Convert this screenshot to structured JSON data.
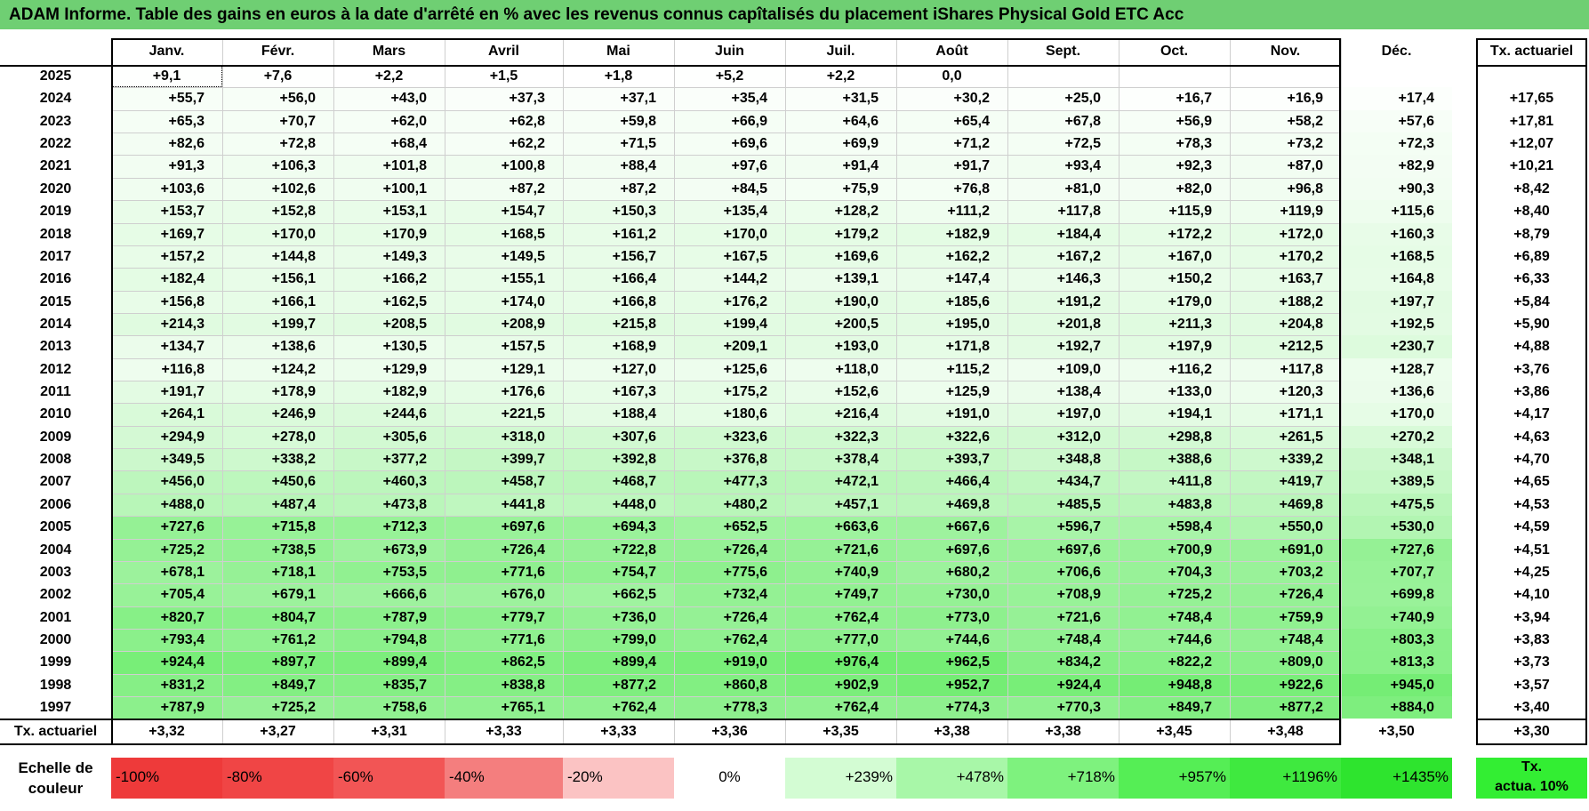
{
  "title": "ADAM Informe. Table des gains en euros à la date d'arrêté en % avec les revenus connus capîtalisés du placement iShares Physical Gold ETC Acc",
  "months": [
    "Janv.",
    "Févr.",
    "Mars",
    "Avril",
    "Mai",
    "Juin",
    "Juil.",
    "Août",
    "Sept.",
    "Oct.",
    "Nov.",
    "Déc."
  ],
  "tx_header": "Tx. actuariel",
  "rows": [
    {
      "year": "2025",
      "values": [
        "+9,1",
        "+7,6",
        "+2,2",
        "+1,5",
        "+1,8",
        "+5,2",
        "+2,2",
        "0,0",
        "",
        "",
        "",
        ""
      ],
      "tx": ""
    },
    {
      "year": "2024",
      "values": [
        "+55,7",
        "+56,0",
        "+43,0",
        "+37,3",
        "+37,1",
        "+35,4",
        "+31,5",
        "+30,2",
        "+25,0",
        "+16,7",
        "+16,9",
        "+17,4"
      ],
      "tx": "+17,65"
    },
    {
      "year": "2023",
      "values": [
        "+65,3",
        "+70,7",
        "+62,0",
        "+62,8",
        "+59,8",
        "+66,9",
        "+64,6",
        "+65,4",
        "+67,8",
        "+56,9",
        "+58,2",
        "+57,6"
      ],
      "tx": "+17,81"
    },
    {
      "year": "2022",
      "values": [
        "+82,6",
        "+72,8",
        "+68,4",
        "+62,2",
        "+71,5",
        "+69,6",
        "+69,9",
        "+71,2",
        "+72,5",
        "+78,3",
        "+73,2",
        "+72,3"
      ],
      "tx": "+12,07"
    },
    {
      "year": "2021",
      "values": [
        "+91,3",
        "+106,3",
        "+101,8",
        "+100,8",
        "+88,4",
        "+97,6",
        "+91,4",
        "+91,7",
        "+93,4",
        "+92,3",
        "+87,0",
        "+82,9"
      ],
      "tx": "+10,21"
    },
    {
      "year": "2020",
      "values": [
        "+103,6",
        "+102,6",
        "+100,1",
        "+87,2",
        "+87,2",
        "+84,5",
        "+75,9",
        "+76,8",
        "+81,0",
        "+82,0",
        "+96,8",
        "+90,3"
      ],
      "tx": "+8,42"
    },
    {
      "year": "2019",
      "values": [
        "+153,7",
        "+152,8",
        "+153,1",
        "+154,7",
        "+150,3",
        "+135,4",
        "+128,2",
        "+111,2",
        "+117,8",
        "+115,9",
        "+119,9",
        "+115,6"
      ],
      "tx": "+8,40"
    },
    {
      "year": "2018",
      "values": [
        "+169,7",
        "+170,0",
        "+170,9",
        "+168,5",
        "+161,2",
        "+170,0",
        "+179,2",
        "+182,9",
        "+184,4",
        "+172,2",
        "+172,0",
        "+160,3"
      ],
      "tx": "+8,79"
    },
    {
      "year": "2017",
      "values": [
        "+157,2",
        "+144,8",
        "+149,3",
        "+149,5",
        "+156,7",
        "+167,5",
        "+169,6",
        "+162,2",
        "+167,2",
        "+167,0",
        "+170,2",
        "+168,5"
      ],
      "tx": "+6,89"
    },
    {
      "year": "2016",
      "values": [
        "+182,4",
        "+156,1",
        "+166,2",
        "+155,1",
        "+166,4",
        "+144,2",
        "+139,1",
        "+147,4",
        "+146,3",
        "+150,2",
        "+163,7",
        "+164,8"
      ],
      "tx": "+6,33"
    },
    {
      "year": "2015",
      "values": [
        "+156,8",
        "+166,1",
        "+162,5",
        "+174,0",
        "+166,8",
        "+176,2",
        "+190,0",
        "+185,6",
        "+191,2",
        "+179,0",
        "+188,2",
        "+197,7"
      ],
      "tx": "+5,84"
    },
    {
      "year": "2014",
      "values": [
        "+214,3",
        "+199,7",
        "+208,5",
        "+208,9",
        "+215,8",
        "+199,4",
        "+200,5",
        "+195,0",
        "+201,8",
        "+211,3",
        "+204,8",
        "+192,5"
      ],
      "tx": "+5,90"
    },
    {
      "year": "2013",
      "values": [
        "+134,7",
        "+138,6",
        "+130,5",
        "+157,5",
        "+168,9",
        "+209,1",
        "+193,0",
        "+171,8",
        "+192,7",
        "+197,9",
        "+212,5",
        "+230,7"
      ],
      "tx": "+4,88"
    },
    {
      "year": "2012",
      "values": [
        "+116,8",
        "+124,2",
        "+129,9",
        "+129,1",
        "+127,0",
        "+125,6",
        "+118,0",
        "+115,2",
        "+109,0",
        "+116,2",
        "+117,8",
        "+128,7"
      ],
      "tx": "+3,76"
    },
    {
      "year": "2011",
      "values": [
        "+191,7",
        "+178,9",
        "+182,9",
        "+176,6",
        "+167,3",
        "+175,2",
        "+152,6",
        "+125,9",
        "+138,4",
        "+133,0",
        "+120,3",
        "+136,6"
      ],
      "tx": "+3,86"
    },
    {
      "year": "2010",
      "values": [
        "+264,1",
        "+246,9",
        "+244,6",
        "+221,5",
        "+188,4",
        "+180,6",
        "+216,4",
        "+191,0",
        "+197,0",
        "+194,1",
        "+171,1",
        "+170,0"
      ],
      "tx": "+4,17"
    },
    {
      "year": "2009",
      "values": [
        "+294,9",
        "+278,0",
        "+305,6",
        "+318,0",
        "+307,6",
        "+323,6",
        "+322,3",
        "+322,6",
        "+312,0",
        "+298,8",
        "+261,5",
        "+270,2"
      ],
      "tx": "+4,63"
    },
    {
      "year": "2008",
      "values": [
        "+349,5",
        "+338,2",
        "+377,2",
        "+399,7",
        "+392,8",
        "+376,8",
        "+378,4",
        "+393,7",
        "+348,8",
        "+388,6",
        "+339,2",
        "+348,1"
      ],
      "tx": "+4,70"
    },
    {
      "year": "2007",
      "values": [
        "+456,0",
        "+450,6",
        "+460,3",
        "+458,7",
        "+468,7",
        "+477,3",
        "+472,1",
        "+466,4",
        "+434,7",
        "+411,8",
        "+419,7",
        "+389,5"
      ],
      "tx": "+4,65"
    },
    {
      "year": "2006",
      "values": [
        "+488,0",
        "+487,4",
        "+473,8",
        "+441,8",
        "+448,0",
        "+480,2",
        "+457,1",
        "+469,8",
        "+485,5",
        "+483,8",
        "+469,8",
        "+475,5"
      ],
      "tx": "+4,53"
    },
    {
      "year": "2005",
      "values": [
        "+727,6",
        "+715,8",
        "+712,3",
        "+697,6",
        "+694,3",
        "+652,5",
        "+663,6",
        "+667,6",
        "+596,7",
        "+598,4",
        "+550,0",
        "+530,0"
      ],
      "tx": "+4,59"
    },
    {
      "year": "2004",
      "values": [
        "+725,2",
        "+738,5",
        "+673,9",
        "+726,4",
        "+722,8",
        "+726,4",
        "+721,6",
        "+697,6",
        "+697,6",
        "+700,9",
        "+691,0",
        "+727,6"
      ],
      "tx": "+4,51"
    },
    {
      "year": "2003",
      "values": [
        "+678,1",
        "+718,1",
        "+753,5",
        "+771,6",
        "+754,7",
        "+775,6",
        "+740,9",
        "+680,2",
        "+706,6",
        "+704,3",
        "+703,2",
        "+707,7"
      ],
      "tx": "+4,25"
    },
    {
      "year": "2002",
      "values": [
        "+705,4",
        "+679,1",
        "+666,6",
        "+676,0",
        "+662,5",
        "+732,4",
        "+749,7",
        "+730,0",
        "+708,9",
        "+725,2",
        "+726,4",
        "+699,8"
      ],
      "tx": "+4,10"
    },
    {
      "year": "2001",
      "values": [
        "+820,7",
        "+804,7",
        "+787,9",
        "+779,7",
        "+736,0",
        "+726,4",
        "+762,4",
        "+773,0",
        "+721,6",
        "+748,4",
        "+759,9",
        "+740,9"
      ],
      "tx": "+3,94"
    },
    {
      "year": "2000",
      "values": [
        "+793,4",
        "+761,2",
        "+794,8",
        "+771,6",
        "+799,0",
        "+762,4",
        "+777,0",
        "+744,6",
        "+748,4",
        "+744,6",
        "+748,4",
        "+803,3"
      ],
      "tx": "+3,83"
    },
    {
      "year": "1999",
      "values": [
        "+924,4",
        "+897,7",
        "+899,4",
        "+862,5",
        "+899,4",
        "+919,0",
        "+976,4",
        "+962,5",
        "+834,2",
        "+822,2",
        "+809,0",
        "+813,3"
      ],
      "tx": "+3,73"
    },
    {
      "year": "1998",
      "values": [
        "+831,2",
        "+849,7",
        "+835,7",
        "+838,8",
        "+877,2",
        "+860,8",
        "+902,9",
        "+952,7",
        "+924,4",
        "+948,8",
        "+922,6",
        "+945,0"
      ],
      "tx": "+3,57"
    },
    {
      "year": "1997",
      "values": [
        "+787,9",
        "+725,2",
        "+758,6",
        "+765,1",
        "+762,4",
        "+778,3",
        "+762,4",
        "+774,3",
        "+770,3",
        "+849,7",
        "+877,2",
        "+884,0"
      ],
      "tx": "+3,40"
    }
  ],
  "footer": {
    "label": "Tx. actuariel",
    "values": [
      "+3,32",
      "+3,27",
      "+3,31",
      "+3,33",
      "+3,33",
      "+3,36",
      "+3,35",
      "+3,38",
      "+3,38",
      "+3,45",
      "+3,48",
      "+3,50"
    ],
    "tx": "+3,30"
  },
  "scale": {
    "label_line1": "Echelle de",
    "label_line2": "couleur",
    "items": [
      {
        "text": "-100%",
        "color": "#ee3a3a",
        "align": "left"
      },
      {
        "text": "-80%",
        "color": "#f04545",
        "align": "left"
      },
      {
        "text": "-60%",
        "color": "#f25555",
        "align": "left"
      },
      {
        "text": "-40%",
        "color": "#f47e7e",
        "align": "left"
      },
      {
        "text": "-20%",
        "color": "#fbc3c3",
        "align": "left"
      },
      {
        "text": "0%",
        "color": "#ffffff",
        "align": "center"
      },
      {
        "text": "+239%",
        "color": "#d3fcd3",
        "align": "right"
      },
      {
        "text": "+478%",
        "color": "#a8f7a8",
        "align": "right"
      },
      {
        "text": "+718%",
        "color": "#7ef27e",
        "align": "right"
      },
      {
        "text": "+957%",
        "color": "#55ee55",
        "align": "right"
      },
      {
        "text": "+1196%",
        "color": "#3fe93f",
        "align": "right"
      },
      {
        "text": "+1435%",
        "color": "#2ee42e",
        "align": "right"
      }
    ],
    "tx_line1": "Tx.",
    "tx_line2": "actua. 10%",
    "tx_color": "#33ee33"
  },
  "colors": {
    "title_bg": "#6fcf73",
    "zero": "#ffffff",
    "max": "#2ee42e"
  }
}
